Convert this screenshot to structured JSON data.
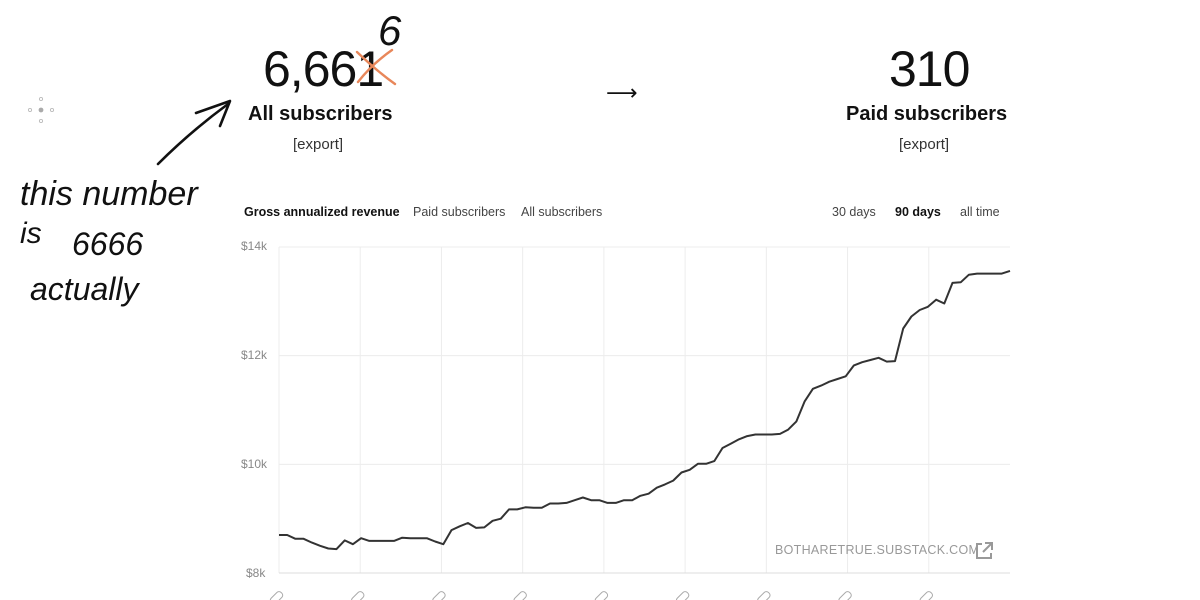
{
  "stats": {
    "all": {
      "value": "6,661",
      "label": "All subscribers",
      "export": "[export]"
    },
    "arrow": "⟶",
    "paid": {
      "value": "310",
      "label": "Paid subscribers",
      "export": "[export]"
    }
  },
  "annotation": {
    "correction_digit": "6",
    "lines": [
      "this number",
      "is",
      "6666",
      "actually"
    ],
    "ink_color": "#111111",
    "strike_color": "#e8875a"
  },
  "drag_handle_icon": "move-handle-icon",
  "tabs": {
    "metrics": [
      "Gross annualized revenue",
      "Paid subscribers",
      "All subscribers"
    ],
    "metrics_active": 0,
    "ranges": [
      "30 days",
      "90 days",
      "all time"
    ],
    "ranges_active": 1
  },
  "chart_data": {
    "type": "line",
    "title": "",
    "xlabel": "",
    "ylabel": "",
    "ylim": [
      8000,
      14000
    ],
    "yticks": [
      8000,
      10000,
      12000,
      14000
    ],
    "ytick_labels": [
      "$8k",
      "$10k",
      "$12k",
      "$14k"
    ],
    "grid": true,
    "line_color": "#333333",
    "x": [
      0,
      1,
      2,
      3,
      4,
      5,
      6,
      7,
      8,
      9,
      10,
      11,
      12,
      13,
      14,
      15,
      16,
      17,
      18,
      19,
      20,
      21,
      22,
      23,
      24,
      25,
      26,
      27,
      28,
      29,
      30,
      31,
      32,
      33,
      34,
      35,
      36,
      37,
      38,
      39,
      40,
      41,
      42,
      43,
      44,
      45,
      46,
      47,
      48,
      49,
      50,
      51,
      52,
      53,
      54,
      55,
      56,
      57,
      58,
      59,
      60,
      61,
      62,
      63,
      64,
      65,
      66,
      67,
      68,
      69,
      70,
      71,
      72,
      73,
      74,
      75,
      76,
      77,
      78,
      79,
      80,
      81,
      82,
      83,
      84,
      85,
      86,
      87,
      88,
      89
    ],
    "series": [
      {
        "values": [
          8700,
          8700,
          8630,
          8630,
          8560,
          8500,
          8450,
          8440,
          8600,
          8530,
          8640,
          8590,
          8590,
          8590,
          8590,
          8650,
          8640,
          8640,
          8640,
          8580,
          8530,
          8790,
          8860,
          8920,
          8830,
          8840,
          8960,
          9000,
          9170,
          9170,
          9210,
          9200,
          9200,
          9280,
          9280,
          9290,
          9340,
          9390,
          9340,
          9340,
          9290,
          9290,
          9340,
          9340,
          9420,
          9460,
          9570,
          9630,
          9700,
          9850,
          9900,
          10010,
          10010,
          10060,
          10300,
          10380,
          10460,
          10520,
          10550,
          10550,
          10550,
          10560,
          10640,
          10790,
          11160,
          11390,
          11450,
          11520,
          11570,
          11620,
          11820,
          11880,
          11920,
          11960,
          11890,
          11900,
          12500,
          12720,
          12840,
          12900,
          13030,
          12960,
          13340,
          13350,
          13490,
          13510,
          13510,
          13510,
          13510,
          13560
        ]
      }
    ],
    "x_tick_count": 9,
    "watermark": "BOTHARETRUE.SUBSTACK.COM"
  }
}
